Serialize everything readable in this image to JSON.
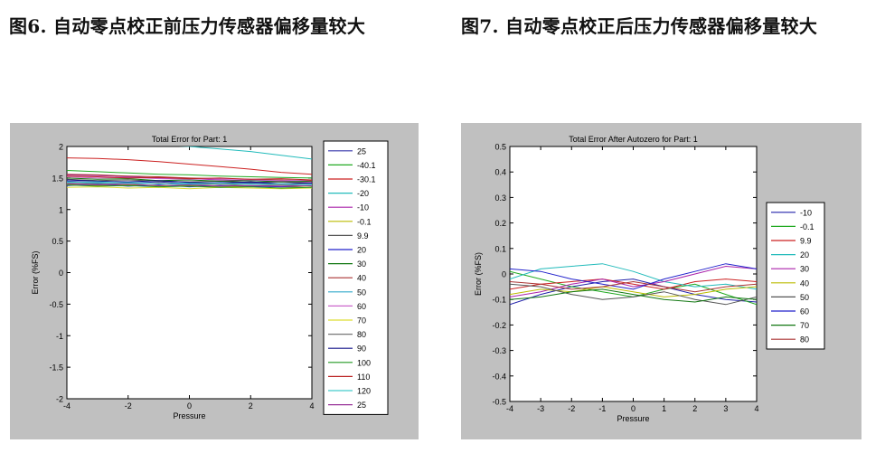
{
  "captions": {
    "left": "图6. 自动零点校正前压力传感器偏移量较大",
    "right": "图7. 自动零点校正后压力传感器偏移量较大"
  },
  "chart_data": [
    {
      "type": "line",
      "title": "Total Error for Part: 1",
      "xlabel": "Pressure",
      "ylabel": "Error (%FS)",
      "xlim": [
        -4,
        4
      ],
      "ylim": [
        -2,
        2
      ],
      "xticks": [
        "-4",
        "-2",
        "0",
        "2",
        "4"
      ],
      "yticks": [
        "-2",
        "-1.5",
        "-1",
        "-0.5",
        "0",
        "0.5",
        "1",
        "1.5",
        "2"
      ],
      "legend_position": "right-outside",
      "grid": false,
      "x": [
        -4,
        -3,
        -2,
        -1,
        0,
        1,
        2,
        3,
        4
      ],
      "series": [
        {
          "name": "25",
          "color": "#3333aa",
          "values": [
            1.45,
            1.43,
            1.42,
            1.44,
            1.41,
            1.43,
            1.42,
            1.41,
            1.42
          ]
        },
        {
          "name": "-40.1",
          "color": "#22aa22",
          "values": [
            1.62,
            1.6,
            1.58,
            1.56,
            1.55,
            1.53,
            1.52,
            1.51,
            1.5
          ]
        },
        {
          "name": "-30.1",
          "color": "#cc2222",
          "values": [
            1.82,
            1.81,
            1.79,
            1.76,
            1.72,
            1.68,
            1.64,
            1.59,
            1.56
          ]
        },
        {
          "name": "-20",
          "color": "#22bbbb",
          "values": [
            2.08,
            2.06,
            2.04,
            2.02,
            2.0,
            1.96,
            1.92,
            1.86,
            1.8
          ]
        },
        {
          "name": "-10",
          "color": "#aa22aa",
          "values": [
            1.55,
            1.54,
            1.52,
            1.5,
            1.49,
            1.47,
            1.46,
            1.45,
            1.44
          ]
        },
        {
          "name": "-0.1",
          "color": "#bbbb00",
          "values": [
            1.4,
            1.38,
            1.39,
            1.37,
            1.38,
            1.36,
            1.37,
            1.36,
            1.35
          ]
        },
        {
          "name": "9.9",
          "color": "#555555",
          "values": [
            1.48,
            1.46,
            1.47,
            1.45,
            1.44,
            1.45,
            1.43,
            1.44,
            1.42
          ]
        },
        {
          "name": "20",
          "color": "#2222cc",
          "values": [
            1.38,
            1.4,
            1.37,
            1.39,
            1.36,
            1.38,
            1.37,
            1.36,
            1.38
          ]
        },
        {
          "name": "30",
          "color": "#117711",
          "values": [
            1.5,
            1.48,
            1.49,
            1.46,
            1.47,
            1.45,
            1.46,
            1.44,
            1.45
          ]
        },
        {
          "name": "40",
          "color": "#aa3333",
          "values": [
            1.56,
            1.55,
            1.53,
            1.52,
            1.5,
            1.49,
            1.48,
            1.47,
            1.46
          ]
        },
        {
          "name": "50",
          "color": "#33aacc",
          "values": [
            1.44,
            1.42,
            1.43,
            1.41,
            1.42,
            1.4,
            1.41,
            1.39,
            1.4
          ]
        },
        {
          "name": "60",
          "color": "#cc66cc",
          "values": [
            1.52,
            1.5,
            1.51,
            1.49,
            1.48,
            1.49,
            1.47,
            1.46,
            1.47
          ]
        },
        {
          "name": "70",
          "color": "#dddd33",
          "values": [
            1.35,
            1.36,
            1.34,
            1.35,
            1.33,
            1.35,
            1.34,
            1.33,
            1.34
          ]
        },
        {
          "name": "80",
          "color": "#777777",
          "values": [
            1.42,
            1.41,
            1.4,
            1.42,
            1.39,
            1.4,
            1.38,
            1.39,
            1.37
          ]
        },
        {
          "name": "90",
          "color": "#111188",
          "values": [
            1.47,
            1.45,
            1.44,
            1.46,
            1.43,
            1.42,
            1.44,
            1.41,
            1.42
          ]
        },
        {
          "name": "100",
          "color": "#229922",
          "values": [
            1.39,
            1.37,
            1.38,
            1.36,
            1.37,
            1.35,
            1.36,
            1.34,
            1.35
          ]
        },
        {
          "name": "110",
          "color": "#bb2222",
          "values": [
            1.53,
            1.52,
            1.5,
            1.51,
            1.49,
            1.5,
            1.48,
            1.49,
            1.47
          ]
        },
        {
          "name": "120",
          "color": "#44cccc",
          "values": [
            1.43,
            1.44,
            1.42,
            1.41,
            1.4,
            1.42,
            1.4,
            1.41,
            1.39
          ]
        },
        {
          "name": "25",
          "color": "#993399",
          "values": [
            1.41,
            1.39,
            1.4,
            1.38,
            1.39,
            1.37,
            1.38,
            1.37,
            1.38
          ]
        }
      ]
    },
    {
      "type": "line",
      "title": "Total Error After Autozero for Part: 1",
      "xlabel": "Pressure",
      "ylabel": "Error (%FS)",
      "xlim": [
        -4,
        4
      ],
      "ylim": [
        -0.5,
        0.5
      ],
      "xticks": [
        "-4",
        "-3",
        "-2",
        "-1",
        "0",
        "1",
        "2",
        "3",
        "4"
      ],
      "yticks": [
        "-0.5",
        "-0.4",
        "-0.3",
        "-0.2",
        "-0.1",
        "0",
        "0.1",
        "0.2",
        "0.3",
        "0.4",
        "0.5"
      ],
      "legend_position": "right-outside",
      "grid": false,
      "x": [
        -4,
        -3,
        -2,
        -1,
        0,
        1,
        2,
        3,
        4
      ],
      "series": [
        {
          "name": "-10",
          "color": "#2222aa",
          "values": [
            -0.12,
            -0.08,
            -0.05,
            -0.03,
            -0.02,
            -0.05,
            -0.08,
            -0.1,
            -0.11
          ]
        },
        {
          "name": "-0.1",
          "color": "#22aa22",
          "values": [
            0.01,
            -0.02,
            -0.05,
            -0.07,
            -0.09,
            -0.06,
            -0.04,
            -0.08,
            -0.12
          ]
        },
        {
          "name": "9.9",
          "color": "#cc2222",
          "values": [
            -0.06,
            -0.04,
            -0.03,
            -0.02,
            -0.04,
            -0.06,
            -0.03,
            -0.02,
            -0.03
          ]
        },
        {
          "name": "20",
          "color": "#22bbbb",
          "values": [
            -0.02,
            0.02,
            0.03,
            0.04,
            0.01,
            -0.03,
            -0.05,
            -0.04,
            -0.06
          ]
        },
        {
          "name": "30",
          "color": "#aa22aa",
          "values": [
            -0.09,
            -0.07,
            -0.04,
            -0.02,
            -0.05,
            -0.03,
            0.0,
            0.03,
            0.02
          ]
        },
        {
          "name": "40",
          "color": "#bbbb00",
          "values": [
            -0.08,
            -0.06,
            -0.07,
            -0.05,
            -0.07,
            -0.09,
            -0.08,
            -0.06,
            -0.05
          ]
        },
        {
          "name": "50",
          "color": "#555555",
          "values": [
            -0.04,
            -0.05,
            -0.08,
            -0.1,
            -0.09,
            -0.07,
            -0.1,
            -0.12,
            -0.09
          ]
        },
        {
          "name": "60",
          "color": "#2222cc",
          "values": [
            0.02,
            0.01,
            -0.02,
            -0.04,
            -0.06,
            -0.02,
            0.01,
            0.04,
            0.02
          ]
        },
        {
          "name": "70",
          "color": "#117711",
          "values": [
            -0.1,
            -0.09,
            -0.07,
            -0.06,
            -0.08,
            -0.1,
            -0.11,
            -0.09,
            -0.1
          ]
        },
        {
          "name": "80",
          "color": "#aa3333",
          "values": [
            -0.03,
            -0.04,
            -0.06,
            -0.05,
            -0.03,
            -0.05,
            -0.07,
            -0.05,
            -0.04
          ]
        }
      ]
    }
  ]
}
